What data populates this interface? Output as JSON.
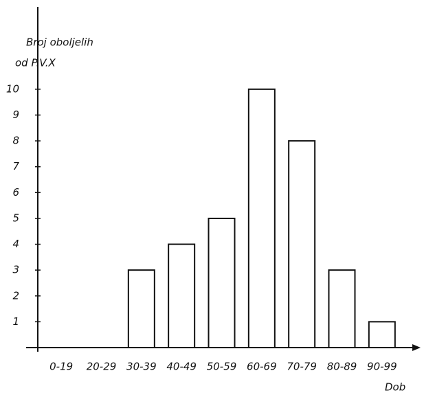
{
  "chart_data": {
    "type": "bar",
    "ylabel": [
      "Broj oboljelih",
      "od P.V.X"
    ],
    "xlabel": "Dob",
    "categories": [
      "0-19",
      "20-29",
      "30-39",
      "40-49",
      "50-59",
      "60-69",
      "70-79",
      "80-89",
      "90-99"
    ],
    "values": [
      0,
      0,
      3,
      4,
      5,
      10,
      8,
      3,
      1
    ],
    "color": "#ffffff",
    "ylim": [
      0,
      13
    ],
    "yticks": [
      1,
      2,
      3,
      4,
      5,
      6,
      7,
      8,
      9,
      10
    ],
    "grid": false
  }
}
